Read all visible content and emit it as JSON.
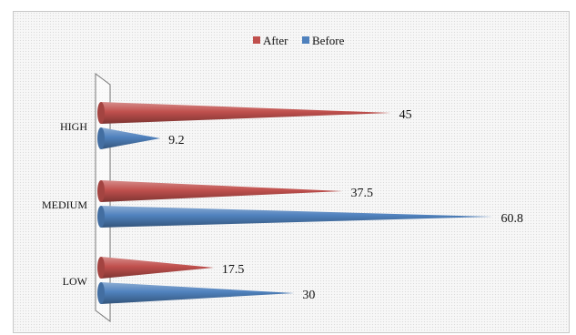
{
  "chart_data": {
    "type": "bar",
    "orientation": "horizontal",
    "style": "3d-cone",
    "categories": [
      "HIGH",
      "MEDIUM",
      "LOW"
    ],
    "series": [
      {
        "name": "After",
        "color": "#c0504d",
        "values": [
          45,
          37.5,
          17.5
        ]
      },
      {
        "name": "Before",
        "color": "#4f81bd",
        "values": [
          9.2,
          60.8,
          30
        ]
      }
    ],
    "legend_order": [
      "After",
      "Before"
    ],
    "legend_position": "top",
    "title": "",
    "xlabel": "",
    "ylabel": "",
    "xlim": [
      0,
      70
    ],
    "grid": false
  }
}
